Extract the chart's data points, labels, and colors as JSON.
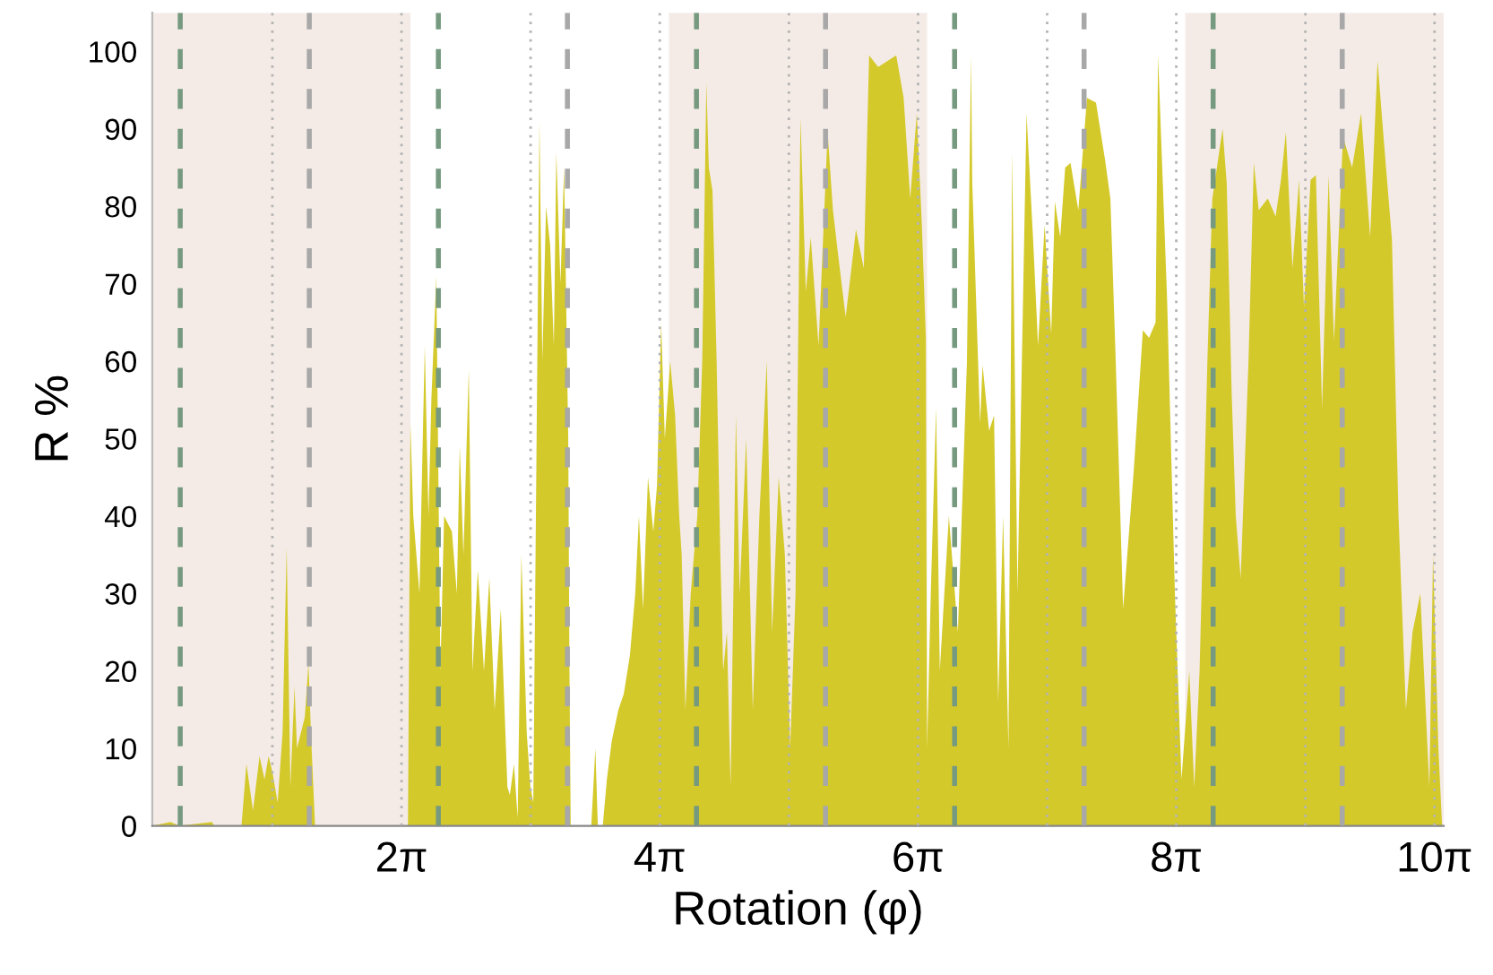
{
  "chart_data": {
    "type": "area",
    "xlabel": "Rotation (φ)",
    "ylabel": "R %",
    "xlim": [
      0.22,
      31.64
    ],
    "ylim": [
      0,
      105
    ],
    "xticks": [
      {
        "value": 6.2832,
        "label": "2π"
      },
      {
        "value": 12.5664,
        "label": "4π"
      },
      {
        "value": 18.8496,
        "label": "6π"
      },
      {
        "value": 25.1327,
        "label": "8π"
      },
      {
        "value": 31.4159,
        "label": "10π"
      }
    ],
    "yticks": [
      0,
      10,
      20,
      30,
      40,
      50,
      60,
      70,
      80,
      90,
      100
    ],
    "grid": false,
    "legend": false,
    "bands": [
      {
        "axis": "x",
        "from": 0.22,
        "to": 6.5,
        "color": "#f4ebe6"
      },
      {
        "axis": "x",
        "from": 12.79,
        "to": 19.07,
        "color": "#f4ebe6"
      },
      {
        "axis": "x",
        "from": 25.35,
        "to": 31.64,
        "color": "#f4ebe6"
      }
    ],
    "ref_lines": [
      {
        "axis": "x",
        "value": 3.1416,
        "color": "#b4b4b4",
        "line_style": "dotted"
      },
      {
        "axis": "x",
        "value": 6.2832,
        "color": "#b4b4b4",
        "line_style": "dotted"
      },
      {
        "axis": "x",
        "value": 9.4248,
        "color": "#b4b4b4",
        "line_style": "dotted"
      },
      {
        "axis": "x",
        "value": 12.5664,
        "color": "#b4b4b4",
        "line_style": "dotted"
      },
      {
        "axis": "x",
        "value": 15.708,
        "color": "#b4b4b4",
        "line_style": "dotted"
      },
      {
        "axis": "x",
        "value": 18.8496,
        "color": "#b4b4b4",
        "line_style": "dotted"
      },
      {
        "axis": "x",
        "value": 21.9911,
        "color": "#b4b4b4",
        "line_style": "dotted"
      },
      {
        "axis": "x",
        "value": 25.1327,
        "color": "#b4b4b4",
        "line_style": "dotted"
      },
      {
        "axis": "x",
        "value": 28.2743,
        "color": "#b4b4b4",
        "line_style": "dotted"
      },
      {
        "axis": "x",
        "value": 31.4159,
        "color": "#b4b4b4",
        "line_style": "dotted"
      },
      {
        "axis": "x",
        "value": 0.9,
        "color": "#769a80",
        "line_style": "dashed"
      },
      {
        "axis": "x",
        "value": 7.18,
        "color": "#769a80",
        "line_style": "dashed"
      },
      {
        "axis": "x",
        "value": 13.46,
        "color": "#769a80",
        "line_style": "dashed"
      },
      {
        "axis": "x",
        "value": 19.74,
        "color": "#769a80",
        "line_style": "dashed"
      },
      {
        "axis": "x",
        "value": 26.03,
        "color": "#769a80",
        "line_style": "dashed"
      },
      {
        "axis": "x",
        "value": 4.04,
        "color": "#a8a8a8",
        "line_style": "dashed"
      },
      {
        "axis": "x",
        "value": 10.32,
        "color": "#a8a8a8",
        "line_style": "dashed"
      },
      {
        "axis": "x",
        "value": 16.6,
        "color": "#a8a8a8",
        "line_style": "dashed"
      },
      {
        "axis": "x",
        "value": 22.89,
        "color": "#a8a8a8",
        "line_style": "dashed"
      },
      {
        "axis": "x",
        "value": 29.17,
        "color": "#a8a8a8",
        "line_style": "dashed"
      }
    ],
    "series": [
      {
        "color": "#d4c92a",
        "x": [
          0.22,
          0.66,
          0.88,
          1.67,
          1.73,
          2.39,
          2.51,
          2.67,
          2.83,
          2.95,
          3.05,
          3.14,
          3.27,
          3.39,
          3.49,
          3.58,
          3.68,
          3.74,
          3.93,
          4.02,
          4.08,
          4.18,
          6.44,
          6.5,
          6.57,
          6.72,
          6.85,
          6.94,
          7.01,
          7.13,
          7.23,
          7.32,
          7.51,
          7.63,
          7.7,
          7.79,
          7.92,
          8.01,
          8.14,
          8.29,
          8.42,
          8.55,
          8.7,
          8.86,
          8.92,
          9.02,
          9.11,
          9.2,
          9.33,
          9.42,
          9.49,
          9.64,
          9.71,
          9.8,
          9.9,
          9.99,
          10.05,
          10.15,
          10.24,
          10.34,
          10.37,
          10.4,
          10.9,
          11.0,
          11.06,
          11.18,
          11.28,
          11.4,
          11.56,
          11.69,
          11.84,
          11.97,
          12.06,
          12.16,
          12.28,
          12.41,
          12.5,
          12.6,
          12.69,
          12.82,
          12.94,
          13.04,
          13.1,
          13.19,
          13.32,
          13.48,
          13.6,
          13.7,
          13.76,
          13.85,
          13.95,
          14.04,
          14.11,
          14.2,
          14.29,
          14.42,
          14.51,
          14.67,
          14.83,
          14.99,
          15.17,
          15.3,
          15.46,
          15.61,
          15.74,
          15.87,
          15.99,
          16.12,
          16.24,
          16.43,
          16.65,
          16.78,
          16.9,
          17.09,
          17.34,
          17.53,
          17.66,
          17.88,
          18.32,
          18.5,
          18.66,
          18.82,
          18.94,
          19.04,
          19.07,
          19.16,
          19.29,
          19.38,
          19.6,
          19.82,
          20.04,
          20.14,
          20.17,
          20.36,
          20.42,
          20.58,
          20.7,
          20.8,
          20.92,
          21.05,
          21.14,
          21.27,
          21.49,
          21.65,
          21.77,
          21.93,
          22.09,
          22.18,
          22.31,
          22.43,
          22.56,
          22.75,
          22.96,
          23.18,
          23.4,
          23.53,
          23.66,
          23.84,
          24.1,
          24.32,
          24.47,
          24.63,
          24.69,
          24.91,
          25.1,
          25.26,
          25.45,
          25.57,
          25.7,
          25.89,
          26.01,
          26.26,
          26.36,
          26.48,
          26.58,
          26.7,
          26.89,
          27.02,
          27.14,
          27.36,
          27.55,
          27.68,
          27.8,
          27.96,
          28.12,
          28.24,
          28.4,
          28.53,
          28.68,
          28.84,
          28.97,
          29.19,
          29.41,
          29.63,
          29.85,
          30.03,
          30.19,
          30.38,
          30.54,
          30.72,
          30.88,
          31.07,
          31.29,
          31.38,
          31.51,
          31.6
        ],
        "values": [
          0,
          0.5,
          0,
          0.5,
          0,
          0,
          8,
          2,
          9,
          6,
          9,
          7,
          3,
          12,
          36,
          5,
          18,
          10,
          14,
          21,
          12,
          0,
          0,
          52,
          40,
          30,
          62,
          40,
          55,
          71,
          20,
          40,
          38,
          30,
          49,
          35,
          59,
          20,
          33,
          20,
          32,
          15,
          28,
          5,
          4,
          8,
          1,
          35,
          12,
          5,
          3,
          91,
          60,
          80,
          75,
          62,
          87,
          70,
          85,
          50,
          20,
          0,
          0,
          10,
          0,
          0,
          6,
          11,
          15,
          17,
          22,
          30,
          40,
          28,
          45,
          38,
          44,
          65,
          50,
          60,
          53,
          40,
          35,
          15,
          30,
          40,
          60,
          96,
          85,
          82,
          60,
          35,
          20,
          25,
          5,
          53,
          30,
          50,
          15,
          40,
          60,
          25,
          45,
          35,
          10,
          30,
          91.5,
          69,
          76,
          62,
          89.6,
          79.5,
          74,
          65.7,
          77,
          72,
          99.5,
          98,
          99.5,
          94,
          81,
          92,
          78,
          63,
          10,
          30,
          54,
          20,
          40,
          25,
          60,
          99.5,
          83,
          52,
          59.5,
          51,
          53,
          16,
          40,
          10,
          87,
          30,
          92,
          75.7,
          62,
          77.6,
          63.5,
          80.6,
          76,
          85,
          85.6,
          79.5,
          94,
          93.4,
          86,
          81,
          60,
          28,
          46,
          64,
          63,
          65,
          99.5,
          68,
          30,
          6,
          20,
          5,
          20,
          60,
          81,
          90,
          83,
          56,
          40,
          32,
          60,
          85.6,
          79.5,
          81,
          78.7,
          83.4,
          89.6,
          72,
          83.4,
          67,
          83.4,
          84,
          54,
          84,
          62.6,
          89,
          85,
          92,
          76,
          98.8,
          88,
          75.7,
          40,
          15,
          25,
          30,
          5,
          35,
          10,
          0
        ]
      }
    ]
  }
}
